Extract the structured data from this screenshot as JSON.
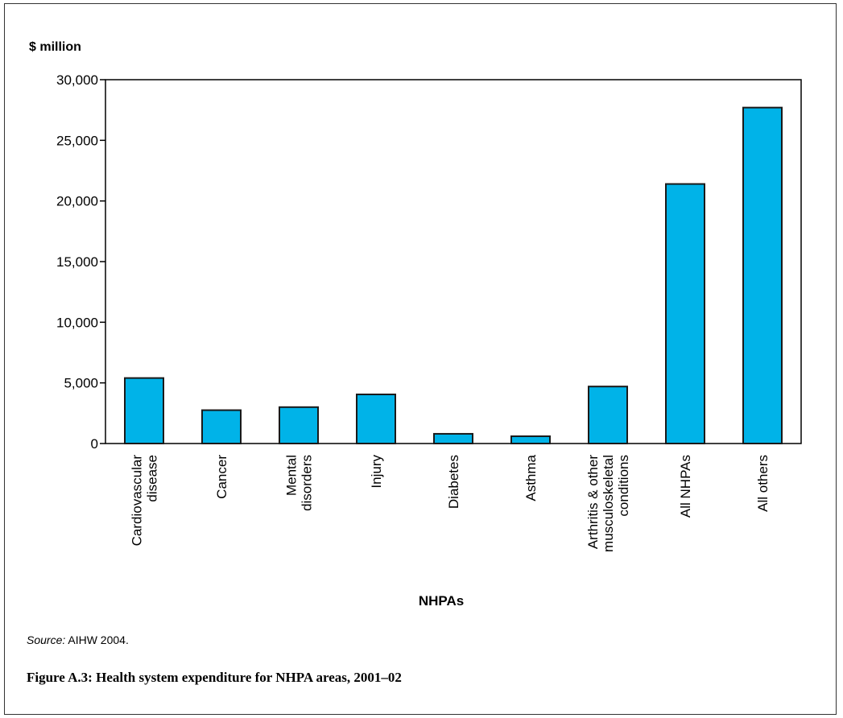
{
  "chart_data": {
    "type": "bar",
    "ylabel": "$ million",
    "xlabel": "NHPAs",
    "ylim": [
      0,
      30000
    ],
    "yticks": [
      "0",
      "5,000",
      "10,000",
      "15,000",
      "20,000",
      "25,000",
      "30,000"
    ],
    "ytick_values": [
      0,
      5000,
      10000,
      15000,
      20000,
      25000,
      30000
    ],
    "categories": [
      [
        "Cardiovascular",
        "disease"
      ],
      [
        "Cancer"
      ],
      [
        "Mental",
        "disorders"
      ],
      [
        "Injury"
      ],
      [
        "Diabetes"
      ],
      [
        "Asthma"
      ],
      [
        "Arthritis & other",
        "musculoskeletal",
        "conditions"
      ],
      [
        "All NHPAs"
      ],
      [
        "All others"
      ]
    ],
    "values": [
      5400,
      2750,
      3000,
      4050,
      800,
      600,
      4700,
      21400,
      27700
    ],
    "bar_color": "#00b3e8",
    "grid": false
  },
  "source": {
    "label": "Source:",
    "text": " AIHW 2004."
  },
  "caption": "Figure A.3: Health system expenditure for NHPA areas, 2001–02"
}
